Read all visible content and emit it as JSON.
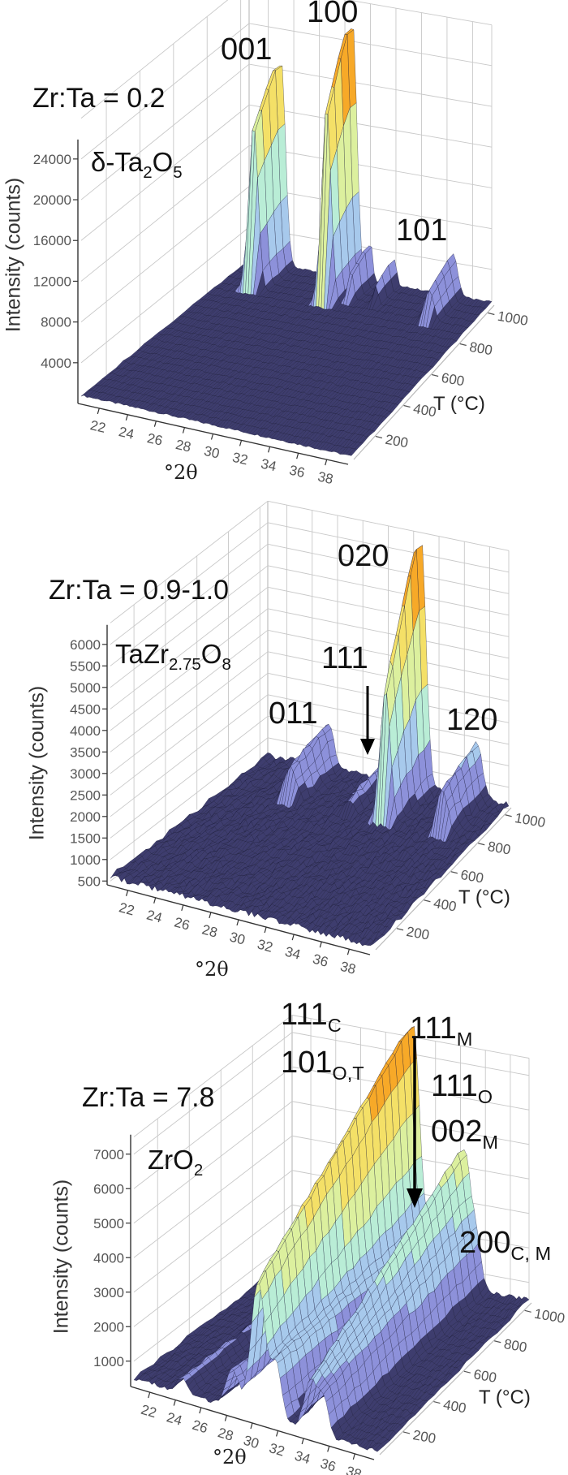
{
  "chart_data": [
    {
      "type": "surface",
      "title": "Zr:Ta = 0.2",
      "phase": [
        "δ-Ta",
        "2",
        "O",
        "5"
      ],
      "xlabel": "°2θ",
      "ylabel": "T (°C)",
      "zlabel": "Intensity (counts)",
      "xlim": [
        20.5,
        39.5
      ],
      "ylim": [
        50,
        1050
      ],
      "zlim": [
        0,
        28000
      ],
      "x_ticks": [
        22,
        24,
        26,
        28,
        30,
        32,
        34,
        36,
        38
      ],
      "y_ticks": [
        200,
        400,
        600,
        800,
        1000
      ],
      "z_ticks": [
        4000,
        8000,
        12000,
        16000,
        20000,
        24000
      ],
      "grid": true,
      "baseline": 800,
      "peaks": [
        {
          "hkl": "001",
          "two_theta": 23.0,
          "fwhm": 0.8,
          "T_start": 880,
          "T_end": 1000,
          "amp_start": 16000,
          "amp_end": 20500
        },
        {
          "hkl": "100",
          "two_theta": 28.6,
          "fwhm": 0.8,
          "T_start": 880,
          "T_end": 1000,
          "amp_start": 19000,
          "amp_end": 25500
        },
        {
          "hkl": "",
          "two_theta": 30.0,
          "fwhm": 0.4,
          "T_start": 900,
          "T_end": 1000,
          "amp_start": 2500,
          "amp_end": 4000
        },
        {
          "hkl": "",
          "two_theta": 31.9,
          "fwhm": 0.4,
          "T_start": 900,
          "T_end": 1000,
          "amp_start": 1500,
          "amp_end": 2500
        },
        {
          "hkl": "101",
          "two_theta": 36.5,
          "fwhm": 0.8,
          "T_start": 880,
          "T_end": 1000,
          "amp_start": 3000,
          "amp_end": 4000
        }
      ],
      "annotations": [
        {
          "main": "001",
          "sub": ""
        },
        {
          "main": "100",
          "sub": ""
        },
        {
          "main": "101",
          "sub": ""
        }
      ]
    },
    {
      "type": "surface",
      "title": "Zr:Ta = 0.9-1.0",
      "phase": [
        "TaZr",
        "2.75",
        "O",
        "8"
      ],
      "xlabel": "°2θ",
      "ylabel": "T (°C)",
      "zlabel": "Intensity (counts)",
      "xlim": [
        20.5,
        39.5
      ],
      "ylim": [
        50,
        1050
      ],
      "zlim": [
        0,
        6500
      ],
      "x_ticks": [
        22,
        24,
        26,
        28,
        30,
        32,
        34,
        36,
        38
      ],
      "y_ticks": [
        200,
        400,
        600,
        800,
        1000
      ],
      "z_ticks": [
        500,
        1000,
        1500,
        2000,
        2500,
        3000,
        3500,
        4000,
        4500,
        5000,
        5500,
        6000
      ],
      "grid": true,
      "baseline": 600,
      "peaks": [
        {
          "hkl": "011",
          "two_theta": 25.3,
          "fwhm": 1.0,
          "T_start": 760,
          "T_end": 1000,
          "amp_start": 700,
          "amp_end": 1050
        },
        {
          "hkl": "111",
          "two_theta": 29.8,
          "fwhm": 0.8,
          "T_start": 760,
          "T_end": 1000,
          "amp_start": 300,
          "amp_end": 400
        },
        {
          "hkl": "020",
          "two_theta": 32.6,
          "fwhm": 0.9,
          "T_start": 760,
          "T_end": 1000,
          "amp_start": 2500,
          "amp_end": 5800
        },
        {
          "hkl": "120",
          "two_theta": 37.0,
          "fwhm": 1.0,
          "T_start": 760,
          "T_end": 1000,
          "amp_start": 900,
          "amp_end": 1300
        }
      ],
      "annotations": [
        {
          "main": "011",
          "sub": ""
        },
        {
          "main": "111",
          "sub": ""
        },
        {
          "main": "020",
          "sub": ""
        },
        {
          "main": "120",
          "sub": ""
        }
      ]
    },
    {
      "type": "surface",
      "title": "Zr:Ta = 7.8",
      "phase": [
        "ZrO",
        "2"
      ],
      "xlabel": "°2θ",
      "ylabel": "T (°C)",
      "zlabel": "Intensity (counts)",
      "xlim": [
        20.5,
        39.5
      ],
      "ylim": [
        50,
        1050
      ],
      "zlim": [
        0,
        7500
      ],
      "x_ticks": [
        22,
        24,
        26,
        28,
        30,
        32,
        34,
        36,
        38
      ],
      "y_ticks": [
        200,
        400,
        600,
        800,
        1000
      ],
      "z_ticks": [
        1000,
        2000,
        3000,
        4000,
        5000,
        6000,
        7000
      ],
      "grid": true,
      "baseline": 500,
      "peaks": [
        {
          "hkl": "",
          "two_theta": 24.3,
          "fwhm": 1.0,
          "T_start": 50,
          "T_end": 1000,
          "amp_start": 450,
          "amp_end": 250
        },
        {
          "hkl": "",
          "two_theta": 28.2,
          "fwhm": 1.2,
          "T_start": 50,
          "T_end": 1000,
          "amp_start": 1100,
          "amp_end": 500
        },
        {
          "hkl": "111",
          "two_theta": 30.2,
          "fwhm": 1.3,
          "T_start": 50,
          "T_end": 1000,
          "amp_start": 3900,
          "amp_end": 7400
        },
        {
          "hkl": "111",
          "two_theta": 31.6,
          "fwhm": 1.0,
          "T_start": 50,
          "T_end": 1000,
          "amp_start": 1600,
          "amp_end": 1200
        },
        {
          "hkl": "002",
          "two_theta": 34.3,
          "fwhm": 1.2,
          "T_start": 50,
          "T_end": 1000,
          "amp_start": 1500,
          "amp_end": 4000
        },
        {
          "hkl": "200",
          "two_theta": 35.3,
          "fwhm": 0.9,
          "T_start": 50,
          "T_end": 1000,
          "amp_start": 1000,
          "amp_end": 1300
        }
      ],
      "annotations": [
        {
          "main": "111",
          "sub": "C"
        },
        {
          "main": "101",
          "sub": "O,T"
        },
        {
          "main": "111",
          "sub": "M"
        },
        {
          "main": "111",
          "sub": "O"
        },
        {
          "main": "002",
          "sub": "M"
        },
        {
          "main": "200",
          "sub": "C, M"
        }
      ]
    }
  ],
  "colors": {
    "surface_low": "#3e3d6e",
    "band1": "#8d91da",
    "band2": "#a7c9ec",
    "band3": "#b9edd6",
    "band4": "#dcf09e",
    "band5": "#f4e067",
    "peak_top": "#f7a928",
    "wall_grid": "#c8c8c8"
  }
}
